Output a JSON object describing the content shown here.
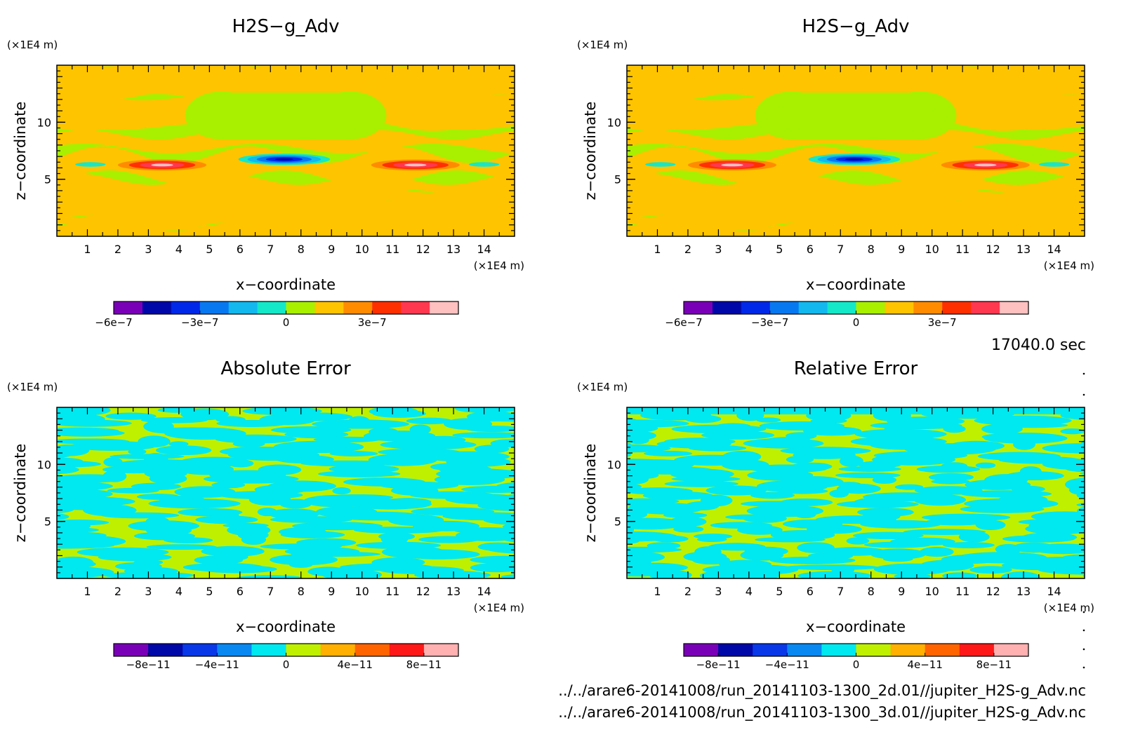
{
  "time_label": "17040.0 sec",
  "file_paths": [
    "../../arare6-20141008/run_20141103-1300_2d.01//jupiter_H2S-g_Adv.nc",
    "../../arare6-20141008/run_20141103-1300_3d.01//jupiter_H2S-g_Adv.nc"
  ],
  "chart_data": [
    {
      "type": "heatmap",
      "title": "H2S−g_Adv",
      "xlabel": "x−coordinate",
      "ylabel": "z−coordinate",
      "x_unit": "(×1E4 m)",
      "y_unit": "(×1E4 m)",
      "xlim": [
        0,
        15
      ],
      "ylim": [
        0,
        15
      ],
      "x_ticks": [
        1,
        2,
        3,
        4,
        5,
        6,
        7,
        8,
        9,
        10,
        11,
        12,
        13,
        14
      ],
      "y_ticks": [
        5,
        10
      ],
      "colorbar": {
        "levels": [
          -6e-07,
          -5e-07,
          -4e-07,
          -3e-07,
          -2e-07,
          -1e-07,
          0,
          1e-07,
          2e-07,
          3e-07,
          4e-07,
          5e-07
        ],
        "colors": [
          "#7a00b8",
          "#0008a8",
          "#0028e8",
          "#0878f0",
          "#12b8ee",
          "#14e8c8",
          "#a8f000",
          "#ffc400",
          "#ff8c00",
          "#ff3000",
          "#ff3850",
          "#ffc0c0"
        ],
        "tick_labels": [
          "−6e−7",
          "−3e−7",
          "0",
          "3e−7"
        ],
        "tick_values": [
          -6e-07,
          -3e-07,
          0,
          3e-07
        ]
      }
    },
    {
      "type": "heatmap",
      "title": "H2S−g_Adv",
      "xlabel": "x−coordinate",
      "ylabel": "z−coordinate",
      "x_unit": "(×1E4 m)",
      "y_unit": "(×1E4 m)",
      "xlim": [
        0,
        15
      ],
      "ylim": [
        0,
        15
      ],
      "x_ticks": [
        1,
        2,
        3,
        4,
        5,
        6,
        7,
        8,
        9,
        10,
        11,
        12,
        13,
        14
      ],
      "y_ticks": [
        5,
        10
      ],
      "colorbar": {
        "levels": [
          -6e-07,
          -5e-07,
          -4e-07,
          -3e-07,
          -2e-07,
          -1e-07,
          0,
          1e-07,
          2e-07,
          3e-07,
          4e-07,
          5e-07
        ],
        "colors": [
          "#7a00b8",
          "#0008a8",
          "#0028e8",
          "#0878f0",
          "#12b8ee",
          "#14e8c8",
          "#a8f000",
          "#ffc400",
          "#ff8c00",
          "#ff3000",
          "#ff3850",
          "#ffc0c0"
        ],
        "tick_labels": [
          "−6e−7",
          "−3e−7",
          "0",
          "3e−7"
        ],
        "tick_values": [
          -6e-07,
          -3e-07,
          0,
          3e-07
        ]
      }
    },
    {
      "type": "heatmap",
      "title": "Absolute Error",
      "xlabel": "x−coordinate",
      "ylabel": "z−coordinate",
      "x_unit": "(×1E4 m)",
      "y_unit": "(×1E4 m)",
      "xlim": [
        0,
        15
      ],
      "ylim": [
        0,
        15
      ],
      "x_ticks": [
        1,
        2,
        3,
        4,
        5,
        6,
        7,
        8,
        9,
        10,
        11,
        12,
        13,
        14
      ],
      "y_ticks": [
        5,
        10
      ],
      "colorbar": {
        "levels": [
          -1e-10,
          -8e-11,
          -6e-11,
          -4e-11,
          -2e-11,
          0,
          2e-11,
          4e-11,
          6e-11,
          8e-11
        ],
        "colors": [
          "#7a00b8",
          "#0008a8",
          "#0838e8",
          "#0888f0",
          "#00e8f0",
          "#bef000",
          "#ffb000",
          "#ff6400",
          "#ff1818",
          "#ffb0b0"
        ],
        "tick_labels": [
          "−8e−11",
          "−4e−11",
          "0",
          "4e−11",
          "8e−11"
        ],
        "tick_values": [
          -8e-11,
          -4e-11,
          0,
          4e-11,
          8e-11
        ]
      }
    },
    {
      "type": "heatmap",
      "title": "Relative Error",
      "xlabel": "x−coordinate",
      "ylabel": "z−coordinate",
      "x_unit": "(×1E4 m)",
      "y_unit": "(×1E4 m)",
      "xlim": [
        0,
        15
      ],
      "ylim": [
        0,
        15
      ],
      "x_ticks": [
        1,
        2,
        3,
        4,
        5,
        6,
        7,
        8,
        9,
        10,
        11,
        12,
        13,
        14
      ],
      "y_ticks": [
        5,
        10
      ],
      "colorbar": {
        "levels": [
          -1e-10,
          -8e-11,
          -6e-11,
          -4e-11,
          -2e-11,
          0,
          2e-11,
          4e-11,
          6e-11,
          8e-11
        ],
        "colors": [
          "#7a00b8",
          "#0008a8",
          "#0838e8",
          "#0888f0",
          "#00e8f0",
          "#bef000",
          "#ffb000",
          "#ff6400",
          "#ff1818",
          "#ffb0b0"
        ],
        "tick_labels": [
          "−8e−11",
          "−4e−11",
          "0",
          "4e−11",
          "8e−11"
        ],
        "tick_values": [
          -8e-11,
          -4e-11,
          0,
          4e-11,
          8e-11
        ]
      }
    }
  ]
}
